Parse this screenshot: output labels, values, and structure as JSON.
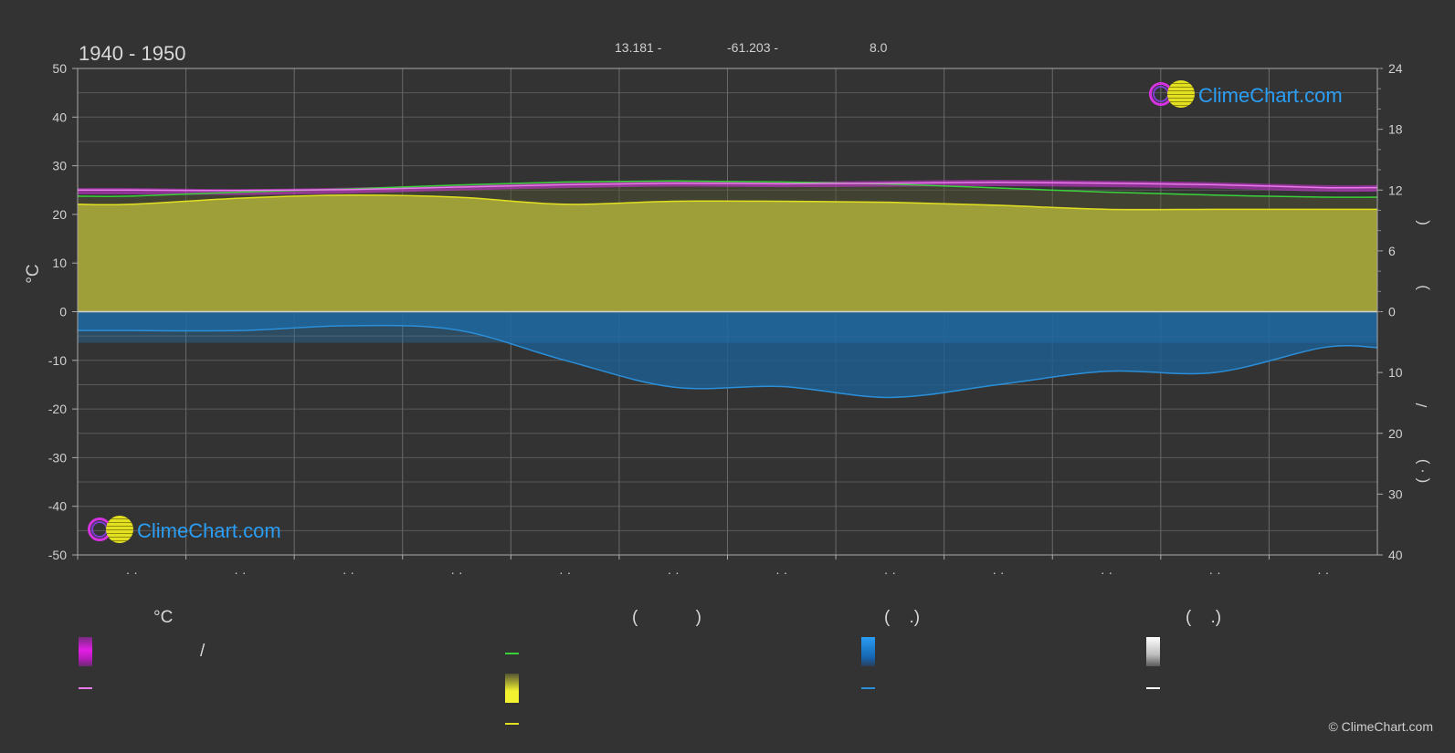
{
  "title": "1940 - 1950",
  "coordinates": {
    "lat": "13.181 -",
    "lon": "-61.203 -",
    "elev": "8.0"
  },
  "left_axis_unit": "°C",
  "right_axis_labels": [
    "(",
    ")",
    "/",
    "(  ·  )"
  ],
  "month_tick_labels": [
    "· ·",
    "· ·",
    "· ·",
    "· ·",
    "· ·",
    "· ·",
    "· ·",
    "· ·",
    "· ·",
    "· ·",
    "· ·",
    "· ·"
  ],
  "legend": {
    "heads": [
      "°C",
      "(            )",
      "(    .)",
      "(    .)"
    ],
    "slash": "/"
  },
  "logo_text": "ClimeChart.com",
  "copyright": "© ClimeChart.com",
  "colors": {
    "background": "#333333",
    "max_min_band": "#d633e0",
    "mean_temp": "#e97ae9",
    "daylight": "#3ad23a",
    "sunshine": "#e0e020",
    "sunshine_area": "#a3a33a",
    "precip": "#2a8fd8",
    "snow": "#ffffff"
  },
  "chart_data": {
    "type": "line",
    "x": [
      1,
      2,
      3,
      4,
      5,
      6,
      7,
      8,
      9,
      10,
      11,
      12
    ],
    "left_axis": {
      "label": "°C",
      "ylim": [
        -50,
        50
      ],
      "ticks": [
        50,
        40,
        30,
        20,
        10,
        0,
        -10,
        -20,
        -30,
        -40,
        -50
      ]
    },
    "right_axis_top": {
      "ylim": [
        0,
        24
      ],
      "ticks": [
        24,
        18,
        12,
        6,
        0
      ]
    },
    "right_axis_bottom": {
      "ylim": [
        0,
        40
      ],
      "ticks": [
        0,
        10,
        20,
        30,
        40
      ]
    },
    "series": [
      {
        "key": "temp_max",
        "axis": "left",
        "values": [
          25.4,
          25.2,
          25.5,
          26.0,
          26.5,
          26.8,
          26.7,
          26.9,
          27.1,
          26.9,
          26.6,
          26.0
        ]
      },
      {
        "key": "temp_min",
        "axis": "left",
        "values": [
          24.1,
          24.0,
          24.3,
          24.9,
          25.4,
          25.7,
          25.6,
          25.7,
          25.8,
          25.6,
          25.3,
          24.7
        ]
      },
      {
        "key": "temp_mean",
        "axis": "left",
        "values": [
          25.0,
          24.9,
          25.1,
          25.6,
          26.1,
          26.4,
          26.3,
          26.4,
          26.6,
          26.4,
          26.1,
          25.5
        ]
      },
      {
        "key": "daylight_hours",
        "axis": "right_top",
        "values": [
          11.4,
          11.8,
          12.1,
          12.5,
          12.8,
          12.9,
          12.8,
          12.6,
          12.2,
          11.8,
          11.5,
          11.3
        ]
      },
      {
        "key": "sunshine_hours",
        "axis": "right_top",
        "values": [
          10.6,
          11.2,
          11.5,
          11.3,
          10.6,
          10.9,
          10.9,
          10.8,
          10.5,
          10.1,
          10.1,
          10.1
        ]
      },
      {
        "key": "precipitation",
        "axis": "right_bottom",
        "values": [
          3.1,
          3.1,
          2.3,
          3.0,
          8.0,
          12.4,
          12.3,
          14.1,
          12.0,
          9.8,
          10.0,
          5.9
        ]
      }
    ]
  }
}
